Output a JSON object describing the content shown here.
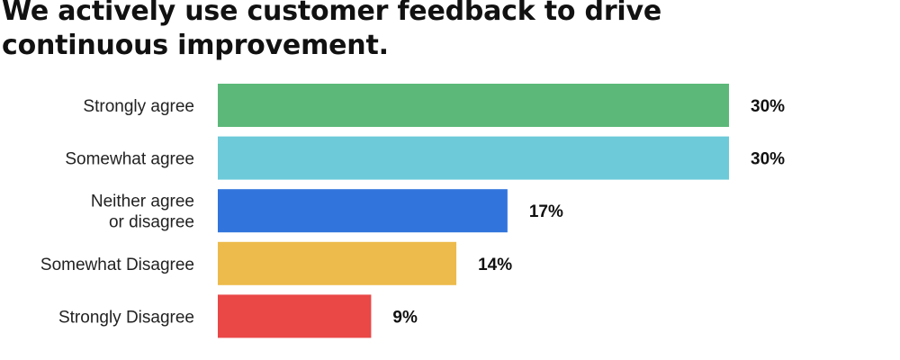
{
  "chart_data": {
    "type": "bar",
    "orientation": "horizontal",
    "title": "We actively use customer feedback to drive continuous improvement.",
    "categories": [
      [
        "Strongly agree"
      ],
      [
        "Somewhat agree"
      ],
      [
        "Neither agree",
        "or disagree"
      ],
      [
        "Somewhat Disagree"
      ],
      [
        "Strongly Disagree"
      ]
    ],
    "values": [
      30,
      30,
      17,
      14,
      9
    ],
    "value_labels": [
      "30%",
      "30%",
      "17%",
      "14%",
      "9%"
    ],
    "colors": [
      "#5bb878",
      "#6ccad9",
      "#3175dc",
      "#ecbb4b",
      "#ea4747"
    ],
    "xlim": [
      0,
      30
    ],
    "grid": false,
    "legend": "none"
  }
}
